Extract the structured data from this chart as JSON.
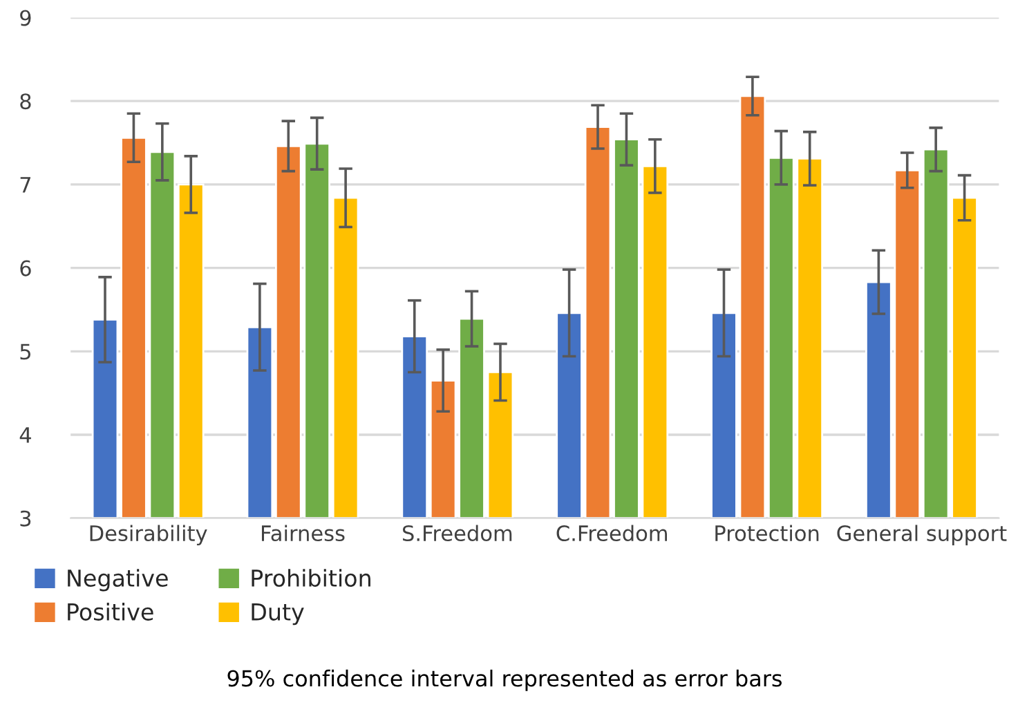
{
  "chart_data": {
    "type": "bar",
    "categories": [
      "Desirability",
      "Fairness",
      "S.Freedom",
      "C.Freedom",
      "Protection",
      "General support"
    ],
    "series": [
      {
        "name": "Negative",
        "color": "#4472c4",
        "values": [
          5.38,
          5.29,
          5.18,
          5.46,
          5.46,
          5.83
        ],
        "errors": [
          0.51,
          0.52,
          0.43,
          0.52,
          0.52,
          0.38
        ]
      },
      {
        "name": "Positive",
        "color": "#ed7d31",
        "values": [
          7.56,
          7.46,
          4.65,
          7.69,
          8.06,
          7.17
        ],
        "errors": [
          0.29,
          0.3,
          0.37,
          0.26,
          0.23,
          0.21
        ]
      },
      {
        "name": "Prohibition",
        "color": "#70ad47",
        "values": [
          7.39,
          7.49,
          5.39,
          7.54,
          7.32,
          7.42
        ],
        "errors": [
          0.34,
          0.31,
          0.33,
          0.31,
          0.32,
          0.26
        ]
      },
      {
        "name": "Duty",
        "color": "#ffc000",
        "values": [
          7.0,
          6.84,
          4.75,
          7.22,
          7.31,
          6.84
        ],
        "errors": [
          0.34,
          0.35,
          0.34,
          0.32,
          0.32,
          0.27
        ]
      }
    ],
    "ylim": [
      3,
      9
    ],
    "yticks": [
      3,
      4,
      5,
      6,
      7,
      8,
      9
    ],
    "grid": "y",
    "legend": "bottom",
    "annotations": [
      "95% confidence interval represented as error bars"
    ]
  }
}
